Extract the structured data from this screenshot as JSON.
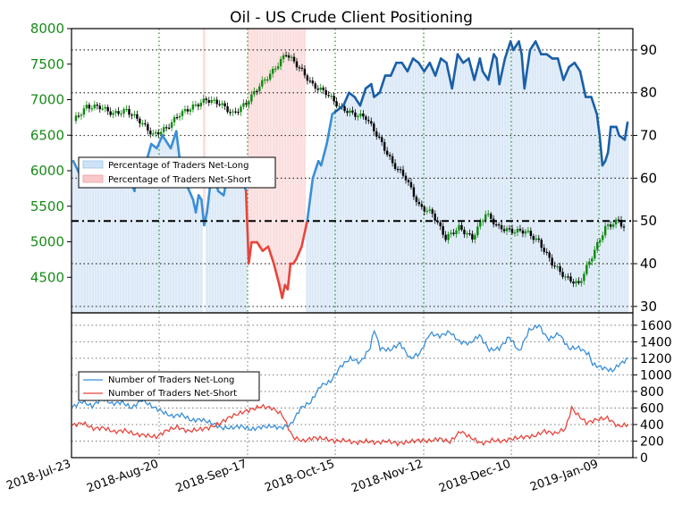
{
  "title": "Oil - US Crude Client Positioning",
  "colors": {
    "net_long": "#1a5fa8",
    "net_long_light": "#3a8fd6",
    "net_short": "#e8453c",
    "candle_up": "#0a8a0a",
    "candle_down": "#000000",
    "left_tick": "#1a8a1a",
    "net_long_fill": "#dce9f7",
    "net_short_fill": "#fbdede"
  },
  "chart_data": [
    {
      "type": "line",
      "title": "Oil - US Crude Client Positioning",
      "price_axis": {
        "ticks": [
          "8000",
          "7500",
          "7000",
          "6500",
          "6000",
          "5500",
          "5000",
          "4500"
        ],
        "ylim": [
          4000,
          8000
        ]
      },
      "percent_axis": {
        "ticks": [
          "90",
          "80",
          "70",
          "60",
          "50",
          "40",
          "30"
        ],
        "ylim": [
          28.5,
          95
        ]
      },
      "x_ticks": [
        "2018-Jul-23",
        "2018-Aug-20",
        "2018-Sep-17",
        "2018-Oct-15",
        "2018-Nov-12",
        "2018-Dec-10",
        "2019-Jan-09"
      ],
      "reference_line": 50,
      "legend": [
        "Percentage of Traders Net-Long",
        "Percentage of Traders Net-Short"
      ],
      "percent_net_long_keypoints": [
        [
          0,
          64
        ],
        [
          3,
          60
        ],
        [
          6,
          61
        ],
        [
          9,
          63
        ],
        [
          11,
          61
        ],
        [
          12,
          60
        ],
        [
          13,
          58
        ],
        [
          16,
          60
        ],
        [
          18,
          58
        ],
        [
          20,
          60
        ],
        [
          22,
          57
        ],
        [
          23,
          64
        ],
        [
          25,
          61
        ],
        [
          28,
          68
        ],
        [
          30,
          67
        ],
        [
          32,
          70
        ],
        [
          35,
          67
        ],
        [
          37,
          71
        ],
        [
          39,
          60
        ],
        [
          41,
          58
        ],
        [
          43,
          55
        ],
        [
          44,
          52
        ],
        [
          45,
          56
        ],
        [
          46,
          55
        ],
        [
          47,
          49
        ],
        [
          48,
          52
        ],
        [
          50,
          63
        ],
        [
          52,
          57
        ],
        [
          54,
          56
        ],
        [
          56,
          63
        ],
        [
          58,
          62
        ],
        [
          60,
          62
        ],
        [
          62,
          57
        ],
        [
          63,
          40
        ],
        [
          64,
          45
        ],
        [
          66,
          45
        ],
        [
          68,
          43
        ],
        [
          70,
          44
        ],
        [
          72,
          40
        ],
        [
          74,
          35
        ],
        [
          75,
          32
        ],
        [
          76,
          35
        ],
        [
          77,
          34
        ],
        [
          78,
          40
        ],
        [
          79,
          40
        ],
        [
          80,
          41
        ],
        [
          82,
          44
        ],
        [
          84,
          50
        ],
        [
          86,
          60
        ],
        [
          88,
          64
        ],
        [
          89,
          63
        ],
        [
          91,
          68
        ],
        [
          93,
          75
        ],
        [
          95,
          76
        ],
        [
          97,
          77
        ],
        [
          99,
          80
        ],
        [
          101,
          79
        ],
        [
          103,
          77
        ],
        [
          105,
          81
        ],
        [
          107,
          82
        ],
        [
          108,
          79
        ],
        [
          110,
          80
        ],
        [
          112,
          84
        ],
        [
          114,
          84
        ],
        [
          116,
          87
        ],
        [
          118,
          87
        ],
        [
          120,
          85
        ],
        [
          122,
          88
        ],
        [
          124,
          87
        ],
        [
          126,
          85
        ],
        [
          128,
          87
        ],
        [
          130,
          84
        ],
        [
          132,
          88
        ],
        [
          134,
          87
        ],
        [
          136,
          81
        ],
        [
          138,
          89
        ],
        [
          140,
          87
        ],
        [
          142,
          88
        ],
        [
          144,
          83
        ],
        [
          146,
          88
        ],
        [
          147,
          85
        ],
        [
          149,
          83
        ],
        [
          151,
          89
        ],
        [
          152,
          88
        ],
        [
          153,
          82
        ],
        [
          155,
          88
        ],
        [
          157,
          92
        ],
        [
          158,
          90
        ],
        [
          160,
          92
        ],
        [
          161,
          89
        ],
        [
          162,
          81
        ],
        [
          164,
          90
        ],
        [
          166,
          92
        ],
        [
          168,
          89
        ],
        [
          170,
          89
        ],
        [
          172,
          88
        ],
        [
          174,
          88
        ],
        [
          176,
          83
        ],
        [
          178,
          86
        ],
        [
          180,
          87
        ],
        [
          182,
          85
        ],
        [
          184,
          79
        ],
        [
          186,
          79
        ],
        [
          188,
          75
        ],
        [
          189,
          70
        ],
        [
          190,
          63
        ],
        [
          191,
          64
        ],
        [
          192,
          66
        ],
        [
          193,
          72
        ],
        [
          195,
          72
        ],
        [
          196,
          70
        ],
        [
          198,
          69
        ],
        [
          199,
          73
        ]
      ],
      "price_keypoints": [
        [
          0,
          6700
        ],
        [
          5,
          6900
        ],
        [
          10,
          6900
        ],
        [
          15,
          6800
        ],
        [
          20,
          6850
        ],
        [
          25,
          6700
        ],
        [
          30,
          6500
        ],
        [
          35,
          6600
        ],
        [
          40,
          6800
        ],
        [
          45,
          6900
        ],
        [
          50,
          7000
        ],
        [
          55,
          6950
        ],
        [
          60,
          6800
        ],
        [
          65,
          6950
        ],
        [
          70,
          7200
        ],
        [
          75,
          7400
        ],
        [
          80,
          7650
        ],
        [
          85,
          7450
        ],
        [
          90,
          7200
        ],
        [
          95,
          7100
        ],
        [
          100,
          6900
        ],
        [
          105,
          6800
        ],
        [
          110,
          6750
        ],
        [
          115,
          6450
        ],
        [
          120,
          6100
        ],
        [
          125,
          5900
        ],
        [
          130,
          5500
        ],
        [
          135,
          5400
        ],
        [
          140,
          5050
        ],
        [
          145,
          5200
        ],
        [
          150,
          5050
        ],
        [
          155,
          5400
        ],
        [
          160,
          5200
        ],
        [
          165,
          5150
        ],
        [
          170,
          5150
        ],
        [
          175,
          5000
        ],
        [
          180,
          4700
        ],
        [
          185,
          4500
        ],
        [
          190,
          4400
        ],
        [
          195,
          4800
        ],
        [
          200,
          5200
        ],
        [
          205,
          5300
        ],
        [
          207,
          5200
        ]
      ]
    },
    {
      "type": "line",
      "y_axis": {
        "ticks": [
          "1600",
          "1400",
          "1200",
          "1000",
          "800",
          "600",
          "400",
          "200",
          "0"
        ],
        "ylim": [
          0,
          1750
        ]
      },
      "legend": [
        "Number of Traders Net-Long",
        "Number of Traders Net-Short"
      ],
      "net_long_keypoints": [
        [
          0,
          610
        ],
        [
          5,
          680
        ],
        [
          10,
          620
        ],
        [
          15,
          720
        ],
        [
          20,
          650
        ],
        [
          25,
          670
        ],
        [
          30,
          600
        ],
        [
          35,
          700
        ],
        [
          40,
          620
        ],
        [
          45,
          560
        ],
        [
          50,
          500
        ],
        [
          55,
          520
        ],
        [
          60,
          450
        ],
        [
          65,
          460
        ],
        [
          70,
          420
        ],
        [
          75,
          360
        ],
        [
          80,
          360
        ],
        [
          85,
          380
        ],
        [
          90,
          340
        ],
        [
          95,
          370
        ],
        [
          100,
          380
        ],
        [
          105,
          360
        ],
        [
          110,
          400
        ],
        [
          115,
          600
        ],
        [
          120,
          670
        ],
        [
          125,
          870
        ],
        [
          130,
          920
        ],
        [
          135,
          1100
        ],
        [
          140,
          1200
        ],
        [
          145,
          1150
        ],
        [
          150,
          1330
        ],
        [
          152,
          1550
        ],
        [
          155,
          1320
        ],
        [
          160,
          1300
        ],
        [
          165,
          1380
        ],
        [
          170,
          1200
        ],
        [
          175,
          1260
        ],
        [
          180,
          1500
        ],
        [
          185,
          1470
        ],
        [
          190,
          1520
        ],
        [
          195,
          1400
        ],
        [
          200,
          1380
        ],
        [
          205,
          1480
        ],
        [
          210,
          1300
        ],
        [
          215,
          1320
        ],
        [
          220,
          1460
        ],
        [
          225,
          1280
        ],
        [
          230,
          1540
        ],
        [
          235,
          1600
        ],
        [
          238,
          1480
        ],
        [
          240,
          1430
        ],
        [
          245,
          1500
        ],
        [
          250,
          1320
        ],
        [
          255,
          1330
        ],
        [
          260,
          1250
        ],
        [
          262,
          1130
        ],
        [
          265,
          1100
        ],
        [
          268,
          1080
        ],
        [
          272,
          1050
        ],
        [
          275,
          1120
        ],
        [
          280,
          1200
        ]
      ],
      "net_short_keypoints": [
        [
          0,
          390
        ],
        [
          5,
          420
        ],
        [
          10,
          350
        ],
        [
          15,
          360
        ],
        [
          20,
          310
        ],
        [
          25,
          330
        ],
        [
          30,
          280
        ],
        [
          35,
          270
        ],
        [
          40,
          250
        ],
        [
          45,
          330
        ],
        [
          50,
          370
        ],
        [
          55,
          320
        ],
        [
          60,
          340
        ],
        [
          65,
          360
        ],
        [
          70,
          410
        ],
        [
          75,
          490
        ],
        [
          80,
          540
        ],
        [
          85,
          580
        ],
        [
          90,
          620
        ],
        [
          95,
          600
        ],
        [
          100,
          520
        ],
        [
          105,
          250
        ],
        [
          110,
          200
        ],
        [
          115,
          240
        ],
        [
          120,
          230
        ],
        [
          125,
          200
        ],
        [
          130,
          210
        ],
        [
          135,
          180
        ],
        [
          140,
          200
        ],
        [
          145,
          180
        ],
        [
          150,
          200
        ],
        [
          155,
          170
        ],
        [
          160,
          190
        ],
        [
          165,
          210
        ],
        [
          170,
          200
        ],
        [
          175,
          230
        ],
        [
          180,
          190
        ],
        [
          185,
          320
        ],
        [
          190,
          240
        ],
        [
          195,
          170
        ],
        [
          200,
          210
        ],
        [
          205,
          200
        ],
        [
          210,
          230
        ],
        [
          215,
          250
        ],
        [
          220,
          260
        ],
        [
          225,
          320
        ],
        [
          230,
          290
        ],
        [
          235,
          350
        ],
        [
          238,
          600
        ],
        [
          240,
          540
        ],
        [
          245,
          420
        ],
        [
          250,
          460
        ],
        [
          255,
          480
        ],
        [
          260,
          380
        ],
        [
          265,
          400
        ]
      ]
    }
  ]
}
